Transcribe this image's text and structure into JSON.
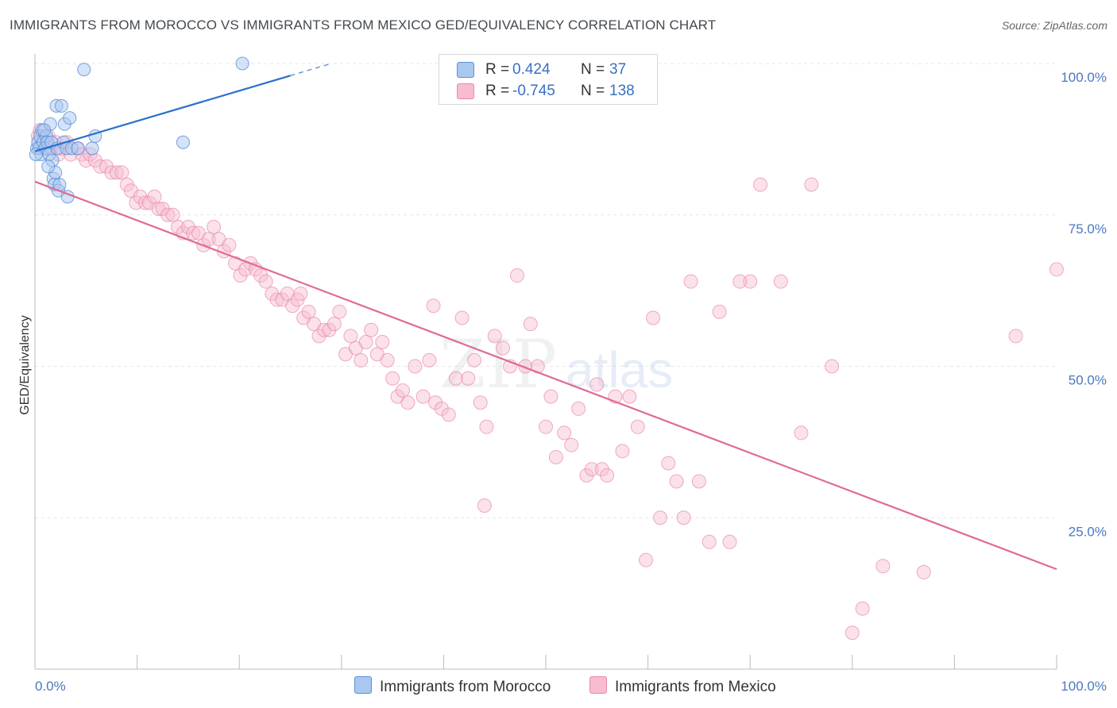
{
  "title": "IMMIGRANTS FROM MOROCCO VS IMMIGRANTS FROM MEXICO GED/EQUIVALENCY CORRELATION CHART",
  "source": "Source: ZipAtlas.com",
  "watermark": {
    "zip": "ZIP",
    "atlas": "atlas"
  },
  "legend": {
    "rows": [
      {
        "r_label": "R =",
        "r_value": "0.424",
        "n_label": "N =",
        "n_value": "37"
      },
      {
        "r_label": "R =",
        "r_value": "-0.745",
        "n_label": "N =",
        "n_value": "138"
      }
    ]
  },
  "bottom_legend": [
    "Immigrants from Morocco",
    "Immigrants from Mexico"
  ],
  "colors": {
    "morocco_fill": "#a9c8f0",
    "morocco_stroke": "#5a8fd8",
    "morocco_line": "#2a6fcc",
    "mexico_fill": "#f7bcd0",
    "mexico_stroke": "#e88aab",
    "mexico_line": "#e06a96",
    "tick": "#4a78c0",
    "grid": "#e6e6e6"
  },
  "chart_data": {
    "type": "scatter",
    "xlabel": "",
    "ylabel": "GED/Equivalency",
    "xlim": [
      0,
      100
    ],
    "ylim": [
      0,
      100
    ],
    "x_tick_labels": [
      "0.0%",
      "100.0%"
    ],
    "y_ticks": [
      25,
      50,
      75,
      100
    ],
    "y_tick_labels": [
      "25.0%",
      "50.0%",
      "75.0%",
      "100.0%"
    ],
    "grid": true,
    "legend_position": "top-center",
    "series": [
      {
        "name": "Immigrants from Morocco",
        "points": [
          [
            0.2,
            86
          ],
          [
            0.3,
            87
          ],
          [
            0.4,
            86
          ],
          [
            0.5,
            88
          ],
          [
            0.6,
            85
          ],
          [
            0.7,
            89
          ],
          [
            0.8,
            87
          ],
          [
            1.0,
            86
          ],
          [
            1.1,
            88
          ],
          [
            1.2,
            87
          ],
          [
            1.4,
            85
          ],
          [
            1.5,
            90
          ],
          [
            1.6,
            87
          ],
          [
            1.7,
            84
          ],
          [
            1.8,
            81
          ],
          [
            1.9,
            80
          ],
          [
            2.0,
            82
          ],
          [
            2.1,
            93
          ],
          [
            2.2,
            86
          ],
          [
            2.3,
            79
          ],
          [
            2.4,
            80
          ],
          [
            2.6,
            93
          ],
          [
            2.8,
            87
          ],
          [
            2.9,
            90
          ],
          [
            3.1,
            86
          ],
          [
            3.2,
            78
          ],
          [
            3.4,
            91
          ],
          [
            3.6,
            86
          ],
          [
            4.2,
            86
          ],
          [
            4.8,
            99
          ],
          [
            5.6,
            86
          ],
          [
            5.9,
            88
          ],
          [
            14.5,
            87
          ],
          [
            20.3,
            100
          ],
          [
            0.1,
            85
          ],
          [
            0.9,
            89
          ],
          [
            1.3,
            83
          ]
        ],
        "trend": [
          [
            0,
            85.5
          ],
          [
            25,
            98
          ]
        ],
        "trend_dashed": [
          [
            25,
            98
          ],
          [
            29,
            100
          ]
        ]
      },
      {
        "name": "Immigrants from Mexico",
        "points": [
          [
            0.3,
            88
          ],
          [
            0.5,
            89
          ],
          [
            0.8,
            87
          ],
          [
            1.0,
            86
          ],
          [
            1.3,
            88
          ],
          [
            1.6,
            86
          ],
          [
            2.0,
            87
          ],
          [
            2.3,
            85
          ],
          [
            2.6,
            86
          ],
          [
            3.1,
            87
          ],
          [
            3.5,
            85
          ],
          [
            4.2,
            86
          ],
          [
            4.6,
            85
          ],
          [
            5.0,
            84
          ],
          [
            5.4,
            85
          ],
          [
            5.9,
            84
          ],
          [
            6.4,
            83
          ],
          [
            7.0,
            83
          ],
          [
            7.5,
            82
          ],
          [
            8.0,
            82
          ],
          [
            8.5,
            82
          ],
          [
            9.0,
            80
          ],
          [
            9.4,
            79
          ],
          [
            9.9,
            77
          ],
          [
            10.3,
            78
          ],
          [
            10.8,
            77
          ],
          [
            11.2,
            77
          ],
          [
            11.7,
            78
          ],
          [
            12.1,
            76
          ],
          [
            12.5,
            76
          ],
          [
            13.0,
            75
          ],
          [
            13.5,
            75
          ],
          [
            14.0,
            73
          ],
          [
            14.5,
            72
          ],
          [
            15.0,
            73
          ],
          [
            15.5,
            72
          ],
          [
            16.0,
            72
          ],
          [
            16.5,
            70
          ],
          [
            17.0,
            71
          ],
          [
            17.5,
            73
          ],
          [
            18.0,
            71
          ],
          [
            18.5,
            69
          ],
          [
            19.0,
            70
          ],
          [
            19.6,
            67
          ],
          [
            20.1,
            65
          ],
          [
            20.6,
            66
          ],
          [
            21.1,
            67
          ],
          [
            21.6,
            66
          ],
          [
            22.1,
            65
          ],
          [
            22.6,
            64
          ],
          [
            23.2,
            62
          ],
          [
            23.7,
            61
          ],
          [
            24.2,
            61
          ],
          [
            24.7,
            62
          ],
          [
            25.2,
            60
          ],
          [
            25.7,
            61
          ],
          [
            26.3,
            58
          ],
          [
            26.8,
            59
          ],
          [
            27.3,
            57
          ],
          [
            27.8,
            55
          ],
          [
            28.3,
            56
          ],
          [
            28.8,
            56
          ],
          [
            29.3,
            57
          ],
          [
            29.8,
            59
          ],
          [
            30.4,
            52
          ],
          [
            30.9,
            55
          ],
          [
            31.4,
            53
          ],
          [
            31.9,
            51
          ],
          [
            32.4,
            54
          ],
          [
            32.9,
            56
          ],
          [
            33.5,
            52
          ],
          [
            34.0,
            54
          ],
          [
            34.5,
            51
          ],
          [
            35.0,
            48
          ],
          [
            35.5,
            45
          ],
          [
            36.0,
            46
          ],
          [
            36.5,
            44
          ],
          [
            37.2,
            50
          ],
          [
            38.0,
            45
          ],
          [
            38.6,
            51
          ],
          [
            39.2,
            44
          ],
          [
            39.8,
            43
          ],
          [
            40.5,
            42
          ],
          [
            41.2,
            48
          ],
          [
            41.8,
            58
          ],
          [
            42.4,
            48
          ],
          [
            43.0,
            51
          ],
          [
            43.6,
            44
          ],
          [
            44.2,
            40
          ],
          [
            45.0,
            55
          ],
          [
            45.8,
            53
          ],
          [
            46.5,
            50
          ],
          [
            47.2,
            65
          ],
          [
            48.0,
            50
          ],
          [
            48.5,
            57
          ],
          [
            49.2,
            50
          ],
          [
            50.0,
            40
          ],
          [
            50.5,
            45
          ],
          [
            51.0,
            35
          ],
          [
            51.8,
            39
          ],
          [
            52.5,
            37
          ],
          [
            53.2,
            43
          ],
          [
            54.0,
            32
          ],
          [
            54.5,
            33
          ],
          [
            55.0,
            47
          ],
          [
            55.5,
            33
          ],
          [
            56.0,
            32
          ],
          [
            56.8,
            45
          ],
          [
            57.5,
            36
          ],
          [
            58.2,
            45
          ],
          [
            59.0,
            40
          ],
          [
            59.8,
            18
          ],
          [
            60.5,
            58
          ],
          [
            61.2,
            25
          ],
          [
            62.0,
            34
          ],
          [
            62.8,
            31
          ],
          [
            63.5,
            25
          ],
          [
            64.2,
            64
          ],
          [
            65.0,
            31
          ],
          [
            66.0,
            21
          ],
          [
            67.0,
            59
          ],
          [
            68.0,
            21
          ],
          [
            70.0,
            64
          ],
          [
            73.0,
            64
          ],
          [
            75.0,
            39
          ],
          [
            78.0,
            50
          ],
          [
            80.0,
            6
          ],
          [
            81.0,
            10
          ],
          [
            83.0,
            17
          ],
          [
            87.0,
            16
          ],
          [
            96.0,
            55
          ],
          [
            100.0,
            66
          ],
          [
            71.0,
            80
          ],
          [
            69.0,
            64
          ],
          [
            76.0,
            80
          ],
          [
            39.0,
            60
          ],
          [
            26.0,
            62
          ],
          [
            44.0,
            27
          ]
        ],
        "trend": [
          [
            0,
            80.5
          ],
          [
            100,
            16.5
          ]
        ]
      }
    ]
  }
}
